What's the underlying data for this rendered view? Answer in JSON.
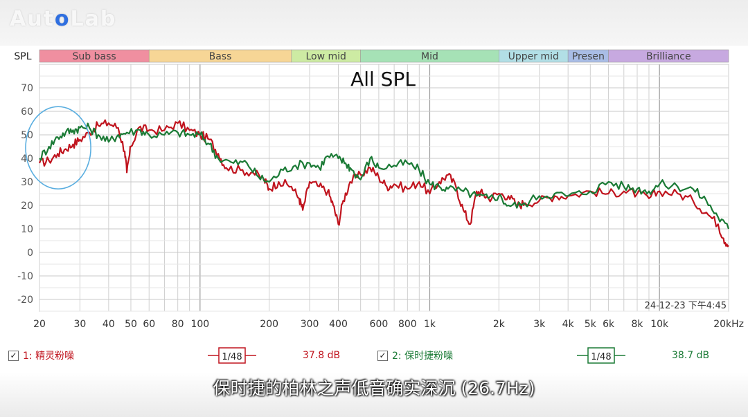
{
  "watermark": {
    "logo_text_a": "Aut",
    "logo_text_o": "o",
    "logo_text_b": "Lab"
  },
  "chart_data": {
    "type": "line",
    "title": "All SPL",
    "ylabel": "SPL",
    "x_unit": "Hz",
    "x_scale": "log",
    "xlim": [
      20,
      20000
    ],
    "ylim": [
      -25,
      80
    ],
    "x_ticks": [
      20,
      30,
      40,
      50,
      60,
      80,
      100,
      200,
      300,
      400,
      600,
      800,
      1000,
      2000,
      3000,
      4000,
      5000,
      6000,
      8000,
      10000,
      20000
    ],
    "x_tick_labels": [
      "20",
      "30",
      "40",
      "50",
      "60",
      "80",
      "100",
      "200",
      "300",
      "400",
      "600",
      "800",
      "1k",
      "2k",
      "3k",
      "4k",
      "5k",
      "6k",
      "8k",
      "10k",
      "20kHz"
    ],
    "y_ticks": [
      70,
      60,
      50,
      40,
      30,
      20,
      10,
      0,
      -10,
      -20
    ],
    "y_tick_labels": [
      "70",
      "60",
      "50",
      "40",
      "30",
      "20",
      "10",
      "0",
      "-10",
      "-20"
    ],
    "grid": true,
    "timestamp": "24-12-23 下午4:45",
    "bands": [
      {
        "name": "Sub bass",
        "from": 20,
        "to": 60,
        "color": "#f08fa0"
      },
      {
        "name": "Bass",
        "from": 60,
        "to": 250,
        "color": "#f7d696"
      },
      {
        "name": "Low mid",
        "from": 250,
        "to": 500,
        "color": "#cdeba3"
      },
      {
        "name": "Mid",
        "from": 500,
        "to": 2000,
        "color": "#a6e2b6"
      },
      {
        "name": "Upper mid",
        "from": 2000,
        "to": 4000,
        "color": "#b2dfe6"
      },
      {
        "name": "Presen",
        "from": 4000,
        "to": 6000,
        "color": "#a9bde6"
      },
      {
        "name": "Brilliance",
        "from": 6000,
        "to": 20000,
        "color": "#c7a9e0"
      }
    ],
    "series": [
      {
        "name": "1: 精灵粉噪",
        "color": "#c0141e",
        "smoothing": "1/48",
        "level": "37.8 dB",
        "points": [
          [
            20,
            38
          ],
          [
            22,
            39
          ],
          [
            24,
            42
          ],
          [
            26,
            44
          ],
          [
            28,
            46
          ],
          [
            30,
            48
          ],
          [
            33,
            51
          ],
          [
            36,
            54
          ],
          [
            40,
            55
          ],
          [
            44,
            53
          ],
          [
            47,
            43
          ],
          [
            48,
            34
          ],
          [
            50,
            45
          ],
          [
            54,
            53
          ],
          [
            60,
            52
          ],
          [
            70,
            52
          ],
          [
            80,
            55
          ],
          [
            90,
            52
          ],
          [
            100,
            50
          ],
          [
            110,
            48
          ],
          [
            120,
            42
          ],
          [
            130,
            36
          ],
          [
            150,
            35
          ],
          [
            170,
            34
          ],
          [
            190,
            31
          ],
          [
            200,
            27
          ],
          [
            220,
            30
          ],
          [
            250,
            28
          ],
          [
            270,
            23
          ],
          [
            280,
            18
          ],
          [
            300,
            30
          ],
          [
            330,
            28
          ],
          [
            360,
            26
          ],
          [
            380,
            20
          ],
          [
            400,
            12
          ],
          [
            420,
            22
          ],
          [
            450,
            30
          ],
          [
            500,
            33
          ],
          [
            550,
            36
          ],
          [
            600,
            32
          ],
          [
            650,
            28
          ],
          [
            700,
            29
          ],
          [
            800,
            27
          ],
          [
            900,
            30
          ],
          [
            1000,
            25
          ],
          [
            1100,
            30
          ],
          [
            1200,
            33
          ],
          [
            1300,
            28
          ],
          [
            1400,
            18
          ],
          [
            1500,
            12
          ],
          [
            1600,
            26
          ],
          [
            1700,
            25
          ],
          [
            1800,
            23
          ],
          [
            2000,
            25
          ],
          [
            2200,
            24
          ],
          [
            2400,
            20
          ],
          [
            2600,
            21
          ],
          [
            3000,
            22
          ],
          [
            3500,
            24
          ],
          [
            4000,
            24
          ],
          [
            5000,
            26
          ],
          [
            6000,
            25
          ],
          [
            7000,
            26
          ],
          [
            8000,
            25
          ],
          [
            9000,
            23
          ],
          [
            10000,
            26
          ],
          [
            12000,
            25
          ],
          [
            14000,
            22
          ],
          [
            16000,
            17
          ],
          [
            18000,
            12
          ],
          [
            19000,
            6
          ],
          [
            20000,
            3
          ]
        ]
      },
      {
        "name": "2: 保时捷粉噪",
        "color": "#1a7a35",
        "smoothing": "1/48",
        "level": "38.7 dB",
        "points": [
          [
            20,
            40
          ],
          [
            22,
            45
          ],
          [
            24,
            49
          ],
          [
            26,
            51
          ],
          [
            28,
            52
          ],
          [
            30,
            53
          ],
          [
            33,
            53
          ],
          [
            36,
            50
          ],
          [
            40,
            47
          ],
          [
            44,
            50
          ],
          [
            48,
            51
          ],
          [
            55,
            52
          ],
          [
            60,
            50
          ],
          [
            70,
            50
          ],
          [
            80,
            51
          ],
          [
            90,
            50
          ],
          [
            100,
            50
          ],
          [
            110,
            46
          ],
          [
            120,
            40
          ],
          [
            140,
            38
          ],
          [
            160,
            38
          ],
          [
            180,
            32
          ],
          [
            200,
            30
          ],
          [
            230,
            35
          ],
          [
            260,
            37
          ],
          [
            300,
            38
          ],
          [
            330,
            36
          ],
          [
            360,
            41
          ],
          [
            400,
            40
          ],
          [
            430,
            38
          ],
          [
            450,
            36
          ],
          [
            500,
            31
          ],
          [
            550,
            40
          ],
          [
            600,
            36
          ],
          [
            700,
            37
          ],
          [
            800,
            38
          ],
          [
            900,
            35
          ],
          [
            1000,
            29
          ],
          [
            1100,
            28
          ],
          [
            1200,
            27
          ],
          [
            1400,
            26
          ],
          [
            1600,
            24
          ],
          [
            1800,
            23
          ],
          [
            2000,
            24
          ],
          [
            2200,
            20
          ],
          [
            2500,
            20
          ],
          [
            3000,
            24
          ],
          [
            3500,
            25
          ],
          [
            4000,
            24
          ],
          [
            5000,
            26
          ],
          [
            6000,
            30
          ],
          [
            7000,
            28
          ],
          [
            8000,
            27
          ],
          [
            9000,
            26
          ],
          [
            10000,
            29
          ],
          [
            12000,
            28
          ],
          [
            14000,
            27
          ],
          [
            16000,
            22
          ],
          [
            18000,
            15
          ],
          [
            20000,
            10
          ]
        ]
      }
    ],
    "annotations": [
      {
        "type": "ellipse-highlight",
        "x_range": [
          20,
          33
        ],
        "y_range": [
          27,
          62
        ],
        "color": "#5aaee0"
      }
    ]
  },
  "caption": "保时捷的柏林之声低音确实深沉 (26.7Hz)"
}
